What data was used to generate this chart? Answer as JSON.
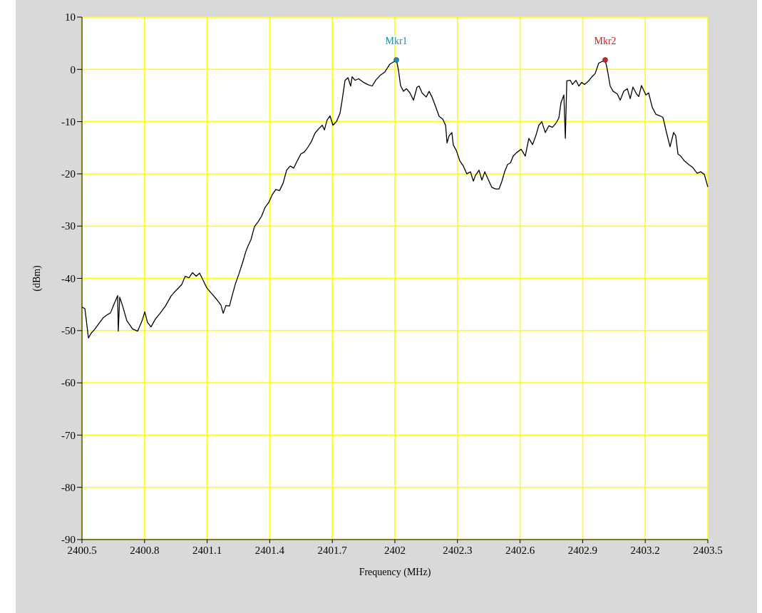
{
  "chart_data": {
    "type": "line",
    "xlabel": "Frequency (MHz)",
    "ylabel": "(dBm)",
    "xlim": [
      2400.5,
      2403.5
    ],
    "xticks": [
      2400.5,
      2400.8,
      2401.1,
      2401.4,
      2401.7,
      2402,
      2402.3,
      2402.6,
      2402.9,
      2403.2,
      2403.5
    ],
    "ylim": [
      -90,
      10
    ],
    "yticks": [
      -90,
      -80,
      -70,
      -60,
      -50,
      -40,
      -30,
      -20,
      -10,
      0,
      10
    ],
    "grid": true,
    "annotations": [
      {
        "text": "Mkr1",
        "x": 2402.007,
        "y": 1.8
      },
      {
        "text": "Mkr2",
        "x": 2403.008,
        "y": 1.8
      }
    ],
    "series": [
      {
        "color": "#000000",
        "x": [
          2400.5,
          2400.514,
          2400.531,
          2400.544,
          2400.562,
          2400.575,
          2400.603,
          2400.62,
          2400.637,
          2400.654,
          2400.671,
          2400.674,
          2400.681,
          2400.695,
          2400.715,
          2400.743,
          2400.767,
          2400.79,
          2400.801,
          2400.814,
          2400.831,
          2400.852,
          2400.876,
          2400.9,
          2400.927,
          2400.944,
          2400.961,
          2400.978,
          2400.995,
          2401.013,
          2401.03,
          2401.047,
          2401.064,
          2401.081,
          2401.098,
          2401.115,
          2401.132,
          2401.149,
          2401.166,
          2401.177,
          2401.19,
          2401.207,
          2401.218,
          2401.235,
          2401.252,
          2401.269,
          2401.286,
          2401.296,
          2401.31,
          2401.327,
          2401.344,
          2401.361,
          2401.378,
          2401.395,
          2401.412,
          2401.429,
          2401.447,
          2401.464,
          2401.481,
          2401.498,
          2401.515,
          2401.532,
          2401.549,
          2401.566,
          2401.583,
          2401.6,
          2401.617,
          2401.634,
          2401.652,
          2401.662,
          2401.675,
          2401.689,
          2401.703,
          2401.72,
          2401.737,
          2401.747,
          2401.761,
          2401.775,
          2401.788,
          2401.795,
          2401.809,
          2401.826,
          2401.85,
          2401.87,
          2401.891,
          2401.908,
          2401.928,
          2401.952,
          2401.976,
          2401.993,
          2402.007,
          2402.017,
          2402.027,
          2402.041,
          2402.055,
          2402.072,
          2402.089,
          2402.106,
          2402.116,
          2402.13,
          2402.15,
          2402.164,
          2402.178,
          2402.195,
          2402.212,
          2402.229,
          2402.243,
          2402.25,
          2402.26,
          2402.273,
          2402.28,
          2402.294,
          2402.311,
          2402.328,
          2402.345,
          2402.362,
          2402.376,
          2402.386,
          2402.403,
          2402.417,
          2402.431,
          2402.451,
          2402.465,
          2402.482,
          2402.499,
          2402.513,
          2402.526,
          2402.54,
          2402.554,
          2402.567,
          2402.584,
          2402.605,
          2402.625,
          2402.642,
          2402.66,
          2402.677,
          2402.69,
          2402.704,
          2402.721,
          2402.738,
          2402.755,
          2402.772,
          2402.786,
          2402.796,
          2402.81,
          2402.817,
          2402.824,
          2402.841,
          2402.851,
          2402.868,
          2402.882,
          2402.895,
          2402.909,
          2402.929,
          2402.943,
          2402.96,
          2402.977,
          2403.008,
          2403.018,
          2403.032,
          2403.046,
          2403.066,
          2403.08,
          2403.097,
          2403.114,
          2403.128,
          2403.141,
          2403.158,
          2403.169,
          2403.182,
          2403.203,
          2403.216,
          2403.234,
          2403.251,
          2403.271,
          2403.285,
          2403.302,
          2403.319,
          2403.336,
          2403.346,
          2403.357,
          2403.37,
          2403.387,
          2403.408,
          2403.428,
          2403.449,
          2403.466,
          2403.483,
          2403.5
        ],
        "values": [
          -45.5,
          -45.8,
          -51.4,
          -50.5,
          -49.7,
          -49.0,
          -47.5,
          -47.0,
          -46.6,
          -44.9,
          -43.3,
          -50.1,
          -43.6,
          -45.3,
          -48.1,
          -49.7,
          -50.1,
          -47.9,
          -46.4,
          -48.4,
          -49.3,
          -47.8,
          -46.6,
          -45.3,
          -43.4,
          -42.6,
          -41.9,
          -41.2,
          -39.6,
          -39.9,
          -38.9,
          -39.6,
          -39.0,
          -40.4,
          -41.8,
          -42.6,
          -43.4,
          -44.2,
          -45.1,
          -46.7,
          -45.2,
          -45.3,
          -43.6,
          -41.1,
          -39.2,
          -37.1,
          -34.8,
          -33.8,
          -32.6,
          -30.1,
          -29.2,
          -28.1,
          -26.4,
          -25.5,
          -24.0,
          -23.0,
          -23.2,
          -21.8,
          -19.3,
          -18.5,
          -18.9,
          -17.5,
          -16.2,
          -15.8,
          -14.9,
          -13.8,
          -12.2,
          -11.4,
          -10.7,
          -11.6,
          -9.7,
          -8.9,
          -10.7,
          -10.0,
          -8.4,
          -5.9,
          -2.1,
          -1.6,
          -3.2,
          -1.4,
          -2.1,
          -1.8,
          -2.5,
          -2.9,
          -3.2,
          -2.1,
          -1.2,
          -0.5,
          1.0,
          1.4,
          1.8,
          -0.1,
          -3.1,
          -4.2,
          -3.7,
          -4.5,
          -5.9,
          -3.4,
          -3.2,
          -4.5,
          -5.3,
          -4.2,
          -5.3,
          -7.1,
          -9.0,
          -9.5,
          -10.7,
          -14.1,
          -12.7,
          -12.1,
          -14.5,
          -15.5,
          -17.5,
          -18.5,
          -20.0,
          -19.6,
          -21.4,
          -20.3,
          -19.3,
          -21.2,
          -19.6,
          -21.4,
          -22.6,
          -22.9,
          -22.9,
          -21.4,
          -19.6,
          -18.2,
          -17.9,
          -16.6,
          -15.9,
          -15.3,
          -16.6,
          -13.2,
          -14.4,
          -12.5,
          -10.7,
          -10.0,
          -12.1,
          -10.8,
          -11.1,
          -10.3,
          -9.3,
          -6.4,
          -4.9,
          -13.2,
          -2.2,
          -2.1,
          -2.9,
          -2.1,
          -3.2,
          -2.5,
          -2.9,
          -2.2,
          -1.5,
          -0.8,
          1.2,
          1.8,
          0,
          -3.2,
          -4.2,
          -4.7,
          -5.9,
          -4.2,
          -3.7,
          -5.6,
          -3.4,
          -4.7,
          -5.2,
          -3.1,
          -4.9,
          -4.5,
          -7.3,
          -8.6,
          -8.9,
          -9.2,
          -12.1,
          -14.8,
          -12.1,
          -12.7,
          -16.2,
          -16.6,
          -17.5,
          -18.2,
          -18.8,
          -19.9,
          -19.6,
          -20.1,
          -22.5
        ]
      },
      {
        "type": "scatter",
        "color": "#1a8fb8",
        "marker": "circle",
        "x": [
          2402.007
        ],
        "values": [
          1.8
        ]
      },
      {
        "type": "scatter",
        "color": "#d42020",
        "marker": "circle",
        "x": [
          2403.008
        ],
        "values": [
          1.8
        ]
      }
    ]
  }
}
